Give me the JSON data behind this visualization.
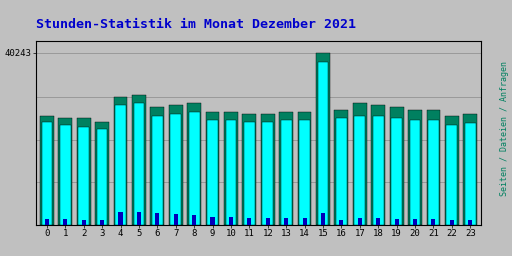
{
  "title": "Stunden-Statistik im Monat Dezember 2021",
  "title_color": "#0000cc",
  "background_color": "#c0c0c0",
  "plot_bg_color": "#c0c0c0",
  "ylabel": "Seiten / Dateien / Anfragen",
  "ylabel_color": "#008060",
  "ytick_label": "40243",
  "hours": [
    0,
    1,
    2,
    3,
    4,
    5,
    6,
    7,
    8,
    9,
    10,
    11,
    12,
    13,
    14,
    15,
    16,
    17,
    18,
    19,
    20,
    21,
    22,
    23
  ],
  "seiten": [
    24000,
    23500,
    23000,
    22500,
    28000,
    28500,
    25500,
    26000,
    26500,
    24500,
    24500,
    24000,
    24000,
    24500,
    24500,
    38000,
    25000,
    25500,
    25500,
    25000,
    24500,
    24500,
    23500,
    23800
  ],
  "dateien": [
    25500,
    25000,
    25000,
    24000,
    30000,
    30500,
    27500,
    28000,
    28500,
    26500,
    26500,
    26000,
    26000,
    26500,
    26500,
    40243,
    27000,
    28500,
    28000,
    27500,
    27000,
    27000,
    25500,
    26000
  ],
  "anfragen": [
    1500,
    1400,
    1200,
    1200,
    3000,
    3200,
    2800,
    2600,
    2400,
    1900,
    1900,
    1700,
    1600,
    1800,
    1800,
    2800,
    1200,
    1700,
    1700,
    1500,
    1500,
    1500,
    1300,
    1200
  ],
  "bar_width": 0.75,
  "seiten_color": "#00ffff",
  "dateien_color": "#008060",
  "anfragen_color": "#0000bb",
  "grid_color": "#999999",
  "border_color": "#000000",
  "ylim": [
    0,
    43000
  ],
  "ytick_val": 40243,
  "fontsize_title": 9.5,
  "fontsize_axis": 6.5,
  "fontsize_ylabel": 6.0
}
